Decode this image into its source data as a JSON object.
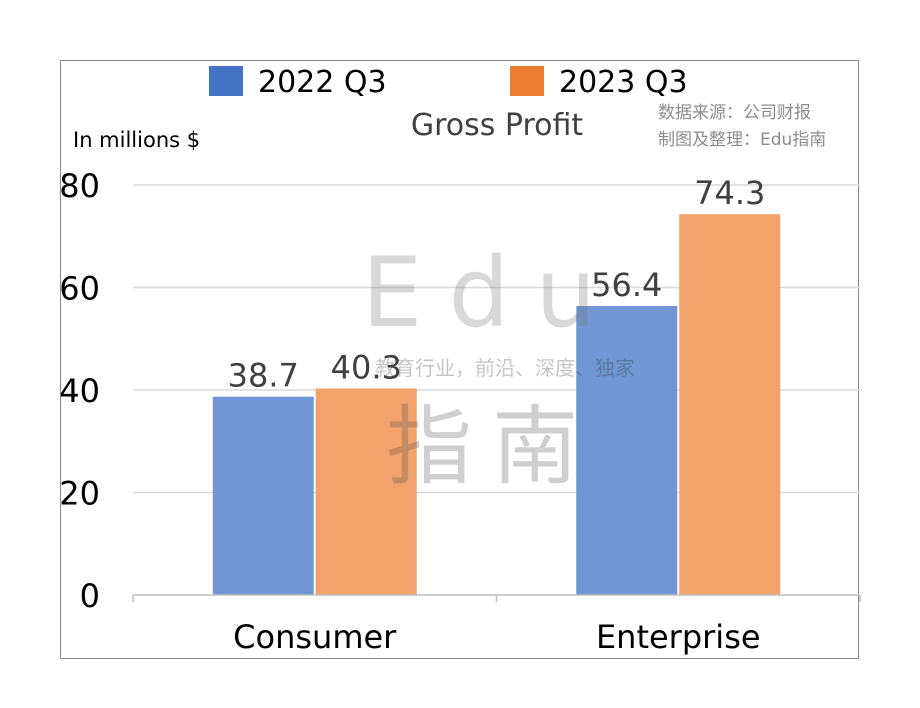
{
  "chart_data": {
    "type": "bar",
    "title": "Gross Profit",
    "ylabel": "In millions $",
    "categories": [
      "Consumer",
      "Enterprise"
    ],
    "series": [
      {
        "name": "2022 Q3",
        "values": [
          38.7,
          56.4
        ],
        "color": "#7096d3",
        "legend_color": "#4472c4"
      },
      {
        "name": "2023 Q3",
        "values": [
          40.3,
          74.3
        ],
        "color": "#f2a26b",
        "legend_color": "#ed7d31"
      }
    ],
    "ylim": [
      0,
      80
    ],
    "yticks": [
      "0",
      "20",
      "40",
      "60",
      "80"
    ],
    "grid": true,
    "legend": "top-center"
  },
  "source_note": {
    "line1": "数据来源：公司财报",
    "line2": "制图及整理：Edu指南"
  },
  "watermark": {
    "brand": "Edu",
    "tagline": "教育行业，前沿、深度、独家",
    "cn": "指南"
  }
}
